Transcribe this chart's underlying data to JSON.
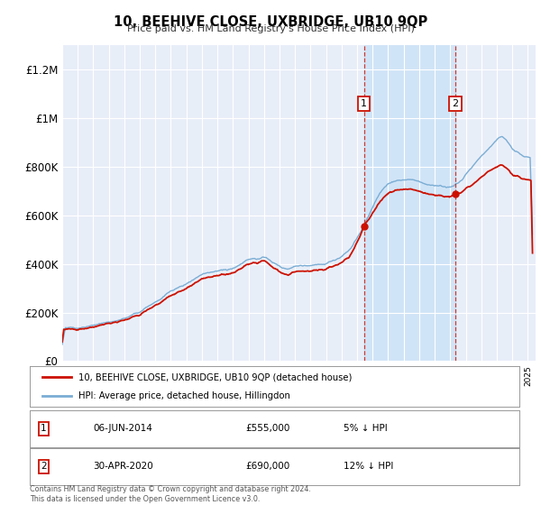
{
  "title": "10, BEEHIVE CLOSE, UXBRIDGE, UB10 9QP",
  "subtitle": "Price paid vs. HM Land Registry's House Price Index (HPI)",
  "ylim": [
    0,
    1300000
  ],
  "yticks": [
    0,
    200000,
    400000,
    600000,
    800000,
    1000000,
    1200000
  ],
  "ytick_labels": [
    "£0",
    "£200K",
    "£400K",
    "£600K",
    "£800K",
    "£1M",
    "£1.2M"
  ],
  "xmin": 1995.0,
  "xmax": 2025.5,
  "plot_bg_color": "#e8eef8",
  "grid_color": "#ffffff",
  "hpi_color": "#7aadd4",
  "sale_color": "#cc1100",
  "highlight_bg": "#d0e4f7",
  "ann1_x": 2014.44,
  "ann1_y": 555000,
  "ann2_x": 2020.33,
  "ann2_y": 690000,
  "legend_line1": "10, BEEHIVE CLOSE, UXBRIDGE, UB10 9QP (detached house)",
  "legend_line2": "HPI: Average price, detached house, Hillingdon",
  "footnote": "Contains HM Land Registry data © Crown copyright and database right 2024.\nThis data is licensed under the Open Government Licence v3.0.",
  "table_row1": [
    "1",
    "06-JUN-2014",
    "£555,000",
    "5% ↓ HPI"
  ],
  "table_row2": [
    "2",
    "30-APR-2020",
    "£690,000",
    "12% ↓ HPI"
  ]
}
